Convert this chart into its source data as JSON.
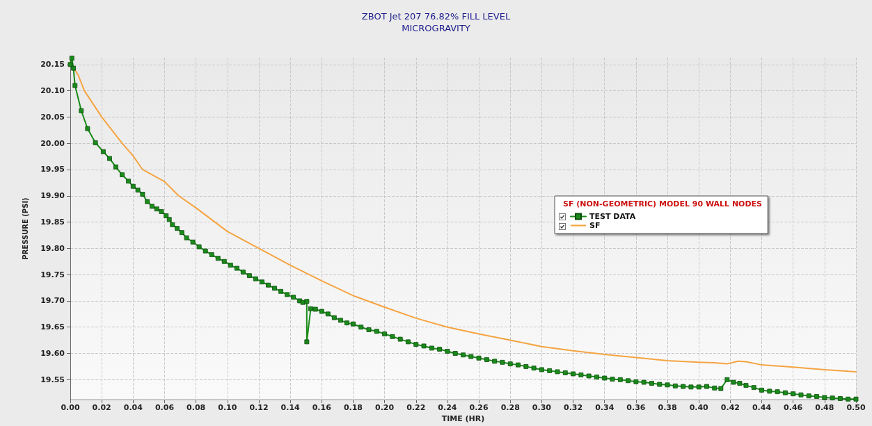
{
  "chart_data": {
    "type": "line",
    "title": "ZBOT Jet 207 76.82% FILL LEVEL",
    "subtitle": "MICROGRAVITY",
    "xlabel": "TIME (HR)",
    "ylabel": "PRESSURE (PSI)",
    "legend_title": "SF (NON-GEOMETRIC) MODEL 90 WALL NODES",
    "legend": "right",
    "grid": true,
    "line_style": "solid",
    "xlim": [
      0,
      0.5
    ],
    "ylim": [
      19.512,
      20.163
    ],
    "xticks": [
      {
        "value": 0,
        "label": "0.00"
      },
      0.02,
      0.04,
      0.06,
      0.08,
      {
        "value": 0.1,
        "label": "0.10"
      },
      0.12,
      0.14,
      0.16,
      0.18,
      {
        "value": 0.2,
        "label": "0.20"
      },
      0.22,
      0.24,
      0.26,
      0.28,
      {
        "value": 0.3,
        "label": "0.30"
      },
      0.32,
      0.34,
      0.36,
      0.38,
      {
        "value": 0.4,
        "label": "0.40"
      },
      0.42,
      0.44,
      0.46,
      0.48,
      {
        "value": 0.5,
        "label": "0.50"
      }
    ],
    "yticks": [
      19.55,
      {
        "value": 19.6,
        "label": "19.60"
      },
      19.65,
      {
        "value": 19.7,
        "label": "19.70"
      },
      19.75,
      {
        "value": 19.8,
        "label": "19.80"
      },
      19.85,
      {
        "value": 19.9,
        "label": "19.90"
      },
      19.95,
      {
        "value": 20,
        "label": "20.00"
      },
      20.05,
      {
        "value": 20.1,
        "label": "20.10"
      },
      20.15
    ],
    "series": [
      {
        "name": "TEST DATA",
        "color": "#1a8a1a",
        "marker": "square",
        "x": [
          0.0,
          0.001,
          0.002,
          0.003,
          0.007,
          0.011,
          0.016,
          0.021,
          0.025,
          0.029,
          0.033,
          0.037,
          0.04,
          0.043,
          0.046,
          0.049,
          0.052,
          0.055,
          0.058,
          0.061,
          0.063,
          0.065,
          0.068,
          0.071,
          0.074,
          0.078,
          0.082,
          0.086,
          0.09,
          0.094,
          0.098,
          0.102,
          0.106,
          0.11,
          0.114,
          0.118,
          0.122,
          0.126,
          0.13,
          0.134,
          0.138,
          0.142,
          0.146,
          0.148,
          0.1505,
          0.1505,
          0.153,
          0.156,
          0.16,
          0.164,
          0.168,
          0.172,
          0.176,
          0.18,
          0.185,
          0.19,
          0.195,
          0.2,
          0.205,
          0.21,
          0.215,
          0.22,
          0.225,
          0.23,
          0.235,
          0.24,
          0.245,
          0.25,
          0.255,
          0.26,
          0.265,
          0.27,
          0.275,
          0.28,
          0.285,
          0.29,
          0.295,
          0.3,
          0.305,
          0.31,
          0.315,
          0.32,
          0.325,
          0.33,
          0.335,
          0.34,
          0.345,
          0.35,
          0.355,
          0.36,
          0.365,
          0.37,
          0.375,
          0.38,
          0.385,
          0.39,
          0.395,
          0.4,
          0.405,
          0.41,
          0.414,
          0.418,
          0.422,
          0.426,
          0.43,
          0.435,
          0.44,
          0.445,
          0.45,
          0.455,
          0.46,
          0.465,
          0.47,
          0.475,
          0.48,
          0.485,
          0.49,
          0.495,
          0.5
        ],
        "values": [
          20.15,
          20.162,
          20.143,
          20.11,
          20.062,
          20.028,
          20.001,
          19.984,
          19.971,
          19.955,
          19.94,
          19.928,
          19.918,
          19.911,
          19.903,
          19.889,
          19.88,
          19.875,
          19.87,
          19.862,
          19.855,
          19.845,
          19.838,
          19.83,
          19.82,
          19.812,
          19.803,
          19.795,
          19.788,
          19.781,
          19.775,
          19.768,
          19.762,
          19.755,
          19.748,
          19.742,
          19.736,
          19.73,
          19.724,
          19.718,
          19.712,
          19.707,
          19.7,
          19.697,
          19.699,
          19.622,
          19.685,
          19.684,
          19.68,
          19.675,
          19.668,
          19.663,
          19.658,
          19.656,
          19.65,
          19.645,
          19.642,
          19.637,
          19.632,
          19.627,
          19.622,
          19.617,
          19.614,
          19.61,
          19.608,
          19.604,
          19.6,
          19.597,
          19.594,
          19.591,
          19.588,
          19.585,
          19.583,
          19.58,
          19.578,
          19.575,
          19.572,
          19.569,
          19.567,
          19.565,
          19.563,
          19.561,
          19.559,
          19.557,
          19.555,
          19.553,
          19.551,
          19.55,
          19.548,
          19.546,
          19.545,
          19.543,
          19.541,
          19.54,
          19.538,
          19.537,
          19.536,
          19.536,
          19.537,
          19.534,
          19.533,
          19.55,
          19.545,
          19.543,
          19.539,
          19.535,
          19.53,
          19.528,
          19.527,
          19.525,
          19.523,
          19.521,
          19.519,
          19.518,
          19.516,
          19.515,
          19.514,
          19.513,
          19.513
        ]
      },
      {
        "name": "SF",
        "color": "#f5a442",
        "marker": "none",
        "x": [
          0.0,
          0.005,
          0.009,
          0.02,
          0.033,
          0.04,
          0.046,
          0.06,
          0.069,
          0.08,
          0.1,
          0.12,
          0.14,
          0.16,
          0.18,
          0.2,
          0.22,
          0.24,
          0.26,
          0.28,
          0.3,
          0.32,
          0.34,
          0.36,
          0.38,
          0.4,
          0.41,
          0.418,
          0.425,
          0.43,
          0.44,
          0.46,
          0.48,
          0.5
        ],
        "values": [
          20.155,
          20.13,
          20.1,
          20.05,
          20.0,
          19.976,
          19.95,
          19.927,
          19.9,
          19.877,
          19.832,
          19.8,
          19.768,
          19.738,
          19.71,
          19.688,
          19.667,
          19.65,
          19.637,
          19.625,
          19.613,
          19.605,
          19.598,
          19.592,
          19.586,
          19.583,
          19.582,
          19.58,
          19.585,
          19.584,
          19.578,
          19.574,
          19.569,
          19.565
        ]
      }
    ]
  }
}
